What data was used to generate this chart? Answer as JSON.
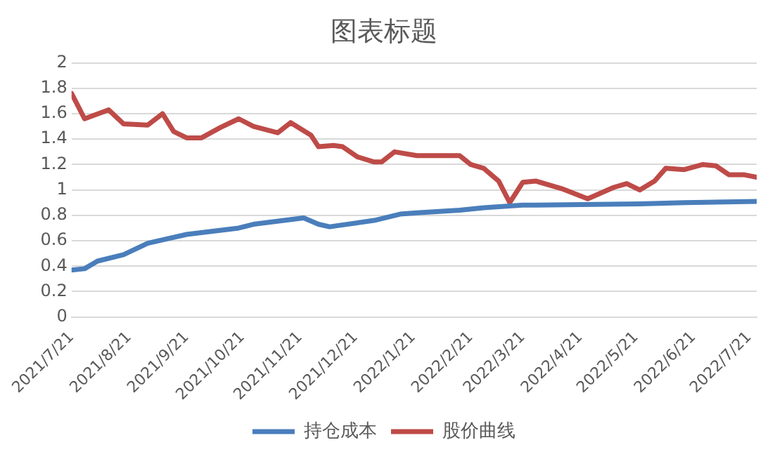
{
  "chart_data": {
    "type": "line",
    "title": "图表标题",
    "xlim": [
      "2021-07-21",
      "2022-07-25"
    ],
    "xticks": [
      {
        "value": "2021-07-21",
        "label": "2021/7/21"
      },
      {
        "value": "2021-08-21",
        "label": "2021/8/21"
      },
      {
        "value": "2021-09-21",
        "label": "2021/9/21"
      },
      {
        "value": "2021-10-21",
        "label": "2021/10/21"
      },
      {
        "value": "2021-11-21",
        "label": "2021/11/21"
      },
      {
        "value": "2021-12-21",
        "label": "2021/12/21"
      },
      {
        "value": "2022-01-21",
        "label": "2022/1/21"
      },
      {
        "value": "2022-02-21",
        "label": "2022/2/21"
      },
      {
        "value": "2022-03-21",
        "label": "2022/3/21"
      },
      {
        "value": "2022-04-21",
        "label": "2022/4/21"
      },
      {
        "value": "2022-05-21",
        "label": "2022/5/21"
      },
      {
        "value": "2022-06-21",
        "label": "2022/6/21"
      },
      {
        "value": "2022-07-21",
        "label": "2022/7/21"
      }
    ],
    "ylim": [
      0,
      2
    ],
    "yticks": [
      0,
      0.2,
      0.4,
      0.6,
      0.8,
      1,
      1.2,
      1.4,
      1.6,
      1.8,
      2
    ],
    "grid": "y",
    "legend": "bottom",
    "marker": "none",
    "line_style": "solid",
    "series": [
      {
        "name": "持仓成本",
        "color": "#4a7ebb",
        "x": [
          "2021-07-21",
          "2021-07-28",
          "2021-08-04",
          "2021-08-18",
          "2021-08-31",
          "2021-09-21",
          "2021-10-19",
          "2021-10-27",
          "2021-11-23",
          "2021-12-01",
          "2021-12-07",
          "2021-12-31",
          "2022-01-14",
          "2022-01-23",
          "2022-02-15",
          "2022-02-28",
          "2022-03-21",
          "2022-05-23",
          "2022-06-16",
          "2022-07-25"
        ],
        "values": [
          0.37,
          0.38,
          0.44,
          0.49,
          0.58,
          0.65,
          0.7,
          0.73,
          0.78,
          0.73,
          0.71,
          0.76,
          0.81,
          0.82,
          0.84,
          0.86,
          0.88,
          0.89,
          0.9,
          0.91
        ]
      },
      {
        "name": "股价曲线",
        "color": "#be4b48",
        "x": [
          "2021-07-21",
          "2021-07-28",
          "2021-08-10",
          "2021-08-18",
          "2021-08-31",
          "2021-09-08",
          "2021-09-14",
          "2021-09-21",
          "2021-09-29",
          "2021-10-09",
          "2021-10-19",
          "2021-10-27",
          "2021-11-09",
          "2021-11-16",
          "2021-11-27",
          "2021-12-01",
          "2021-12-09",
          "2021-12-14",
          "2021-12-22",
          "2021-12-31",
          "2022-01-04",
          "2022-01-11",
          "2022-01-23",
          "2022-02-15",
          "2022-02-21",
          "2022-02-28",
          "2022-03-08",
          "2022-03-14",
          "2022-03-21",
          "2022-03-28",
          "2022-04-11",
          "2022-04-25",
          "2022-05-09",
          "2022-05-16",
          "2022-05-23",
          "2022-05-31",
          "2022-06-06",
          "2022-06-16",
          "2022-06-26",
          "2022-07-03",
          "2022-07-10",
          "2022-07-18",
          "2022-07-25"
        ],
        "values": [
          1.76,
          1.56,
          1.63,
          1.52,
          1.51,
          1.6,
          1.46,
          1.41,
          1.41,
          1.49,
          1.56,
          1.5,
          1.45,
          1.53,
          1.43,
          1.34,
          1.35,
          1.34,
          1.26,
          1.22,
          1.22,
          1.3,
          1.27,
          1.27,
          1.2,
          1.17,
          1.07,
          0.9,
          1.06,
          1.07,
          1.01,
          0.93,
          1.02,
          1.05,
          1,
          1.07,
          1.17,
          1.16,
          1.2,
          1.19,
          1.12,
          1.12,
          1.1
        ]
      }
    ]
  }
}
